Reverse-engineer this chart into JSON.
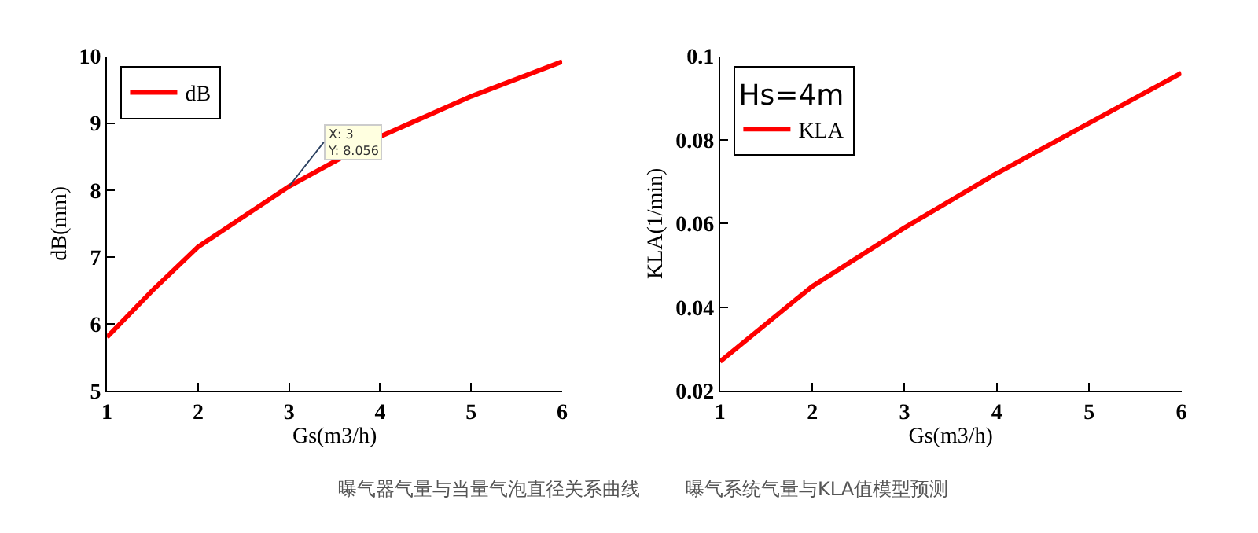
{
  "chart_data": [
    {
      "type": "line",
      "x": [
        1,
        1.5,
        2,
        3,
        4,
        5,
        6
      ],
      "xlabel": "Gs(m3/h)",
      "ylabel": "dB(mm)",
      "xlim": [
        1,
        6
      ],
      "xticks": [
        1,
        2,
        3,
        4,
        5,
        6
      ],
      "ylim": [
        5,
        10
      ],
      "yticks": [
        5,
        6,
        7,
        8,
        9,
        10
      ],
      "legend": "top left",
      "series": [
        {
          "name": "dB",
          "color": "#ff0000",
          "values": [
            5.8,
            6.5,
            7.15,
            8.056,
            8.8,
            9.4,
            9.92
          ]
        }
      ],
      "annotations": [
        {
          "text": "X: 3\nY: 8.056",
          "x": 3,
          "y": 8.056
        },
        "曝气器气量与当量气泡直径关系曲线"
      ]
    },
    {
      "type": "line",
      "x": [
        1,
        2,
        3,
        4,
        5,
        6
      ],
      "xlabel": "Gs(m3/h)",
      "ylabel": "KLA(1/min)",
      "xlim": [
        1,
        6
      ],
      "xticks": [
        1,
        2,
        3,
        4,
        5,
        6
      ],
      "ylim": [
        0.02,
        0.1
      ],
      "yticks": [
        0.02,
        0.04,
        0.06,
        0.08,
        0.1
      ],
      "legend": "top left",
      "legend_title": "Hs=4m",
      "series": [
        {
          "name": "KLA",
          "color": "#ff0000",
          "values": [
            0.027,
            0.045,
            0.059,
            0.072,
            0.084,
            0.096
          ]
        }
      ],
      "annotations": [
        "曝气系统气量与KLA值模型预测"
      ]
    }
  ]
}
